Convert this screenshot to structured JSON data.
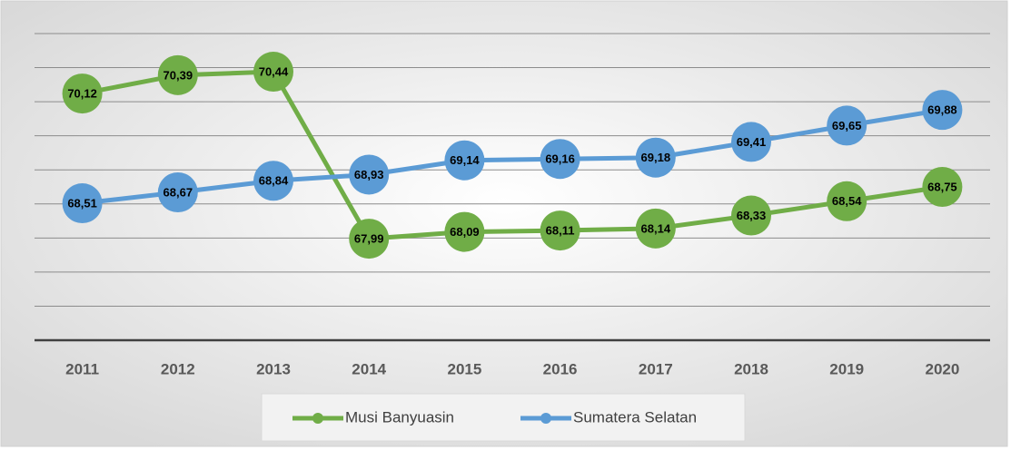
{
  "chart_data": {
    "type": "line",
    "categories": [
      "2011",
      "2012",
      "2013",
      "2014",
      "2015",
      "2016",
      "2017",
      "2018",
      "2019",
      "2020"
    ],
    "series": [
      {
        "name": "Musi Banyuasin",
        "color": "#70ad47",
        "values": [
          70.12,
          70.39,
          70.44,
          67.99,
          68.09,
          68.11,
          68.14,
          68.33,
          68.54,
          68.75
        ],
        "value_labels": [
          "70,12",
          "70,39",
          "70,44",
          "67,99",
          "68,09",
          "68,11",
          "68,14",
          "68,33",
          "68,54",
          "68,75"
        ]
      },
      {
        "name": "Sumatera Selatan",
        "color": "#5b9bd5",
        "values": [
          68.51,
          68.67,
          68.84,
          68.93,
          69.14,
          69.16,
          69.18,
          69.41,
          69.65,
          69.88
        ],
        "value_labels": [
          "68,51",
          "68,67",
          "68,84",
          "68,93",
          "69,14",
          "69,16",
          "69,18",
          "69,41",
          "69,65",
          "69,88"
        ]
      }
    ],
    "ylim": [
      66.5,
      71
    ],
    "yticks": [
      66.5,
      67,
      67.5,
      68,
      68.5,
      69,
      69.5,
      70,
      70.5,
      71
    ],
    "grid": true,
    "legend": "bottom"
  }
}
